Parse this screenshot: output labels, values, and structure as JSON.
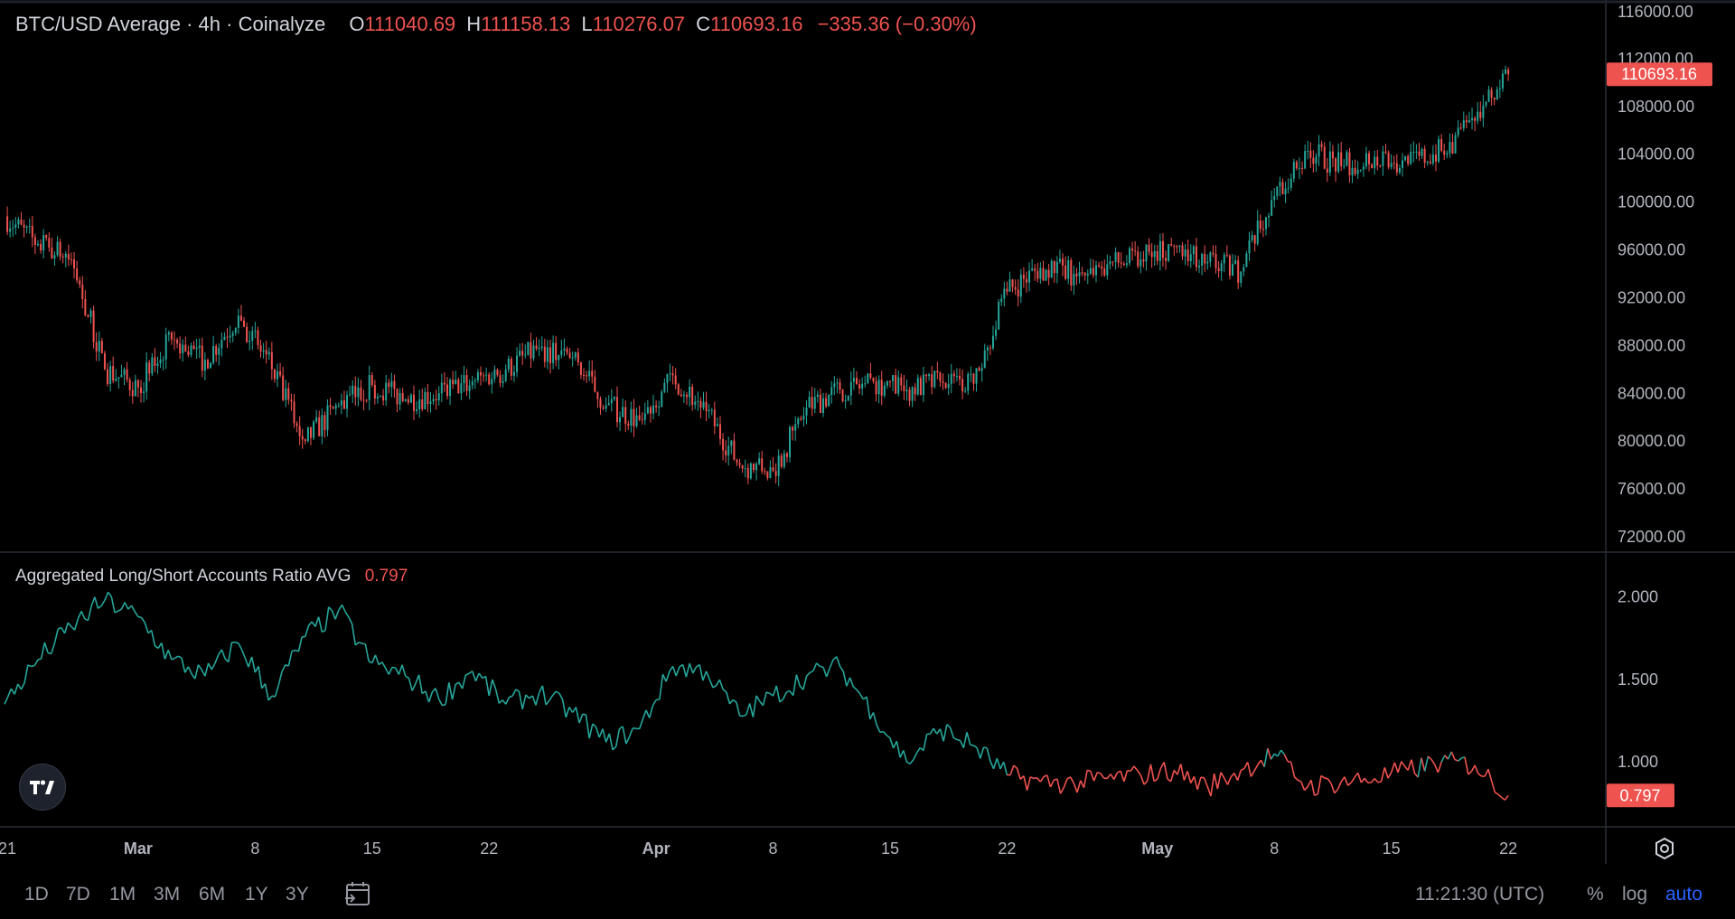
{
  "header": {
    "title": "BTC/USD Average · 4h · Coinalyze",
    "open_label": "O",
    "open": "111040.69",
    "high_label": "H",
    "high": "111158.13",
    "low_label": "L",
    "low": "110276.07",
    "close_label": "C",
    "close": "110693.16",
    "change": "−335.36 (−0.30%)"
  },
  "indicator": {
    "name": "Aggregated Long/Short Accounts Ratio AVG",
    "value": "0.797"
  },
  "timeframes": [
    "1D",
    "7D",
    "1M",
    "3M",
    "6M",
    "1Y",
    "3Y"
  ],
  "clock": "11:21:30 (UTC)",
  "options": {
    "percent": "%",
    "log": "log",
    "auto": "auto"
  },
  "colors": {
    "up": "#26a69a",
    "down": "#ef5350",
    "accent": "#2962ff",
    "grid": "#2a2e39"
  },
  "chart_data": [
    {
      "type": "candlestick",
      "title": "BTC/USD Average · 4h · Coinalyze",
      "interval": "4h",
      "ylim": [
        72000,
        116000
      ],
      "y_ticks": [
        "116000.00",
        "112000.00",
        "108000.00",
        "104000.00",
        "100000.00",
        "96000.00",
        "92000.00",
        "88000.00",
        "84000.00",
        "80000.00",
        "76000.00",
        "72000.00"
      ],
      "x_ticks": [
        "21",
        "Mar",
        "8",
        "15",
        "22",
        "Apr",
        "8",
        "15",
        "22",
        "May",
        "8",
        "15",
        "22"
      ],
      "last_value_label": "110693.16",
      "x": [
        "2025-02-21",
        "2025-02-23",
        "2025-02-25",
        "2025-02-27",
        "2025-03-01",
        "2025-03-03",
        "2025-03-05",
        "2025-03-07",
        "2025-03-09",
        "2025-03-11",
        "2025-03-13",
        "2025-03-15",
        "2025-03-17",
        "2025-03-19",
        "2025-03-21",
        "2025-03-23",
        "2025-03-25",
        "2025-03-27",
        "2025-03-29",
        "2025-03-31",
        "2025-04-02",
        "2025-04-04",
        "2025-04-06",
        "2025-04-08",
        "2025-04-10",
        "2025-04-12",
        "2025-04-14",
        "2025-04-16",
        "2025-04-18",
        "2025-04-20",
        "2025-04-22",
        "2025-04-24",
        "2025-04-26",
        "2025-04-28",
        "2025-04-30",
        "2025-05-02",
        "2025-05-04",
        "2025-05-06",
        "2025-05-08",
        "2025-05-10",
        "2025-05-12",
        "2025-05-14",
        "2025-05-16",
        "2025-05-18",
        "2025-05-20",
        "2025-05-22"
      ],
      "close": [
        98800,
        96500,
        95200,
        86000,
        84500,
        88500,
        86800,
        90500,
        86000,
        80000,
        83000,
        84700,
        83500,
        84000,
        85000,
        86000,
        87800,
        87000,
        83000,
        81800,
        85500,
        82500,
        78000,
        77500,
        82800,
        84300,
        85000,
        84300,
        85000,
        84800,
        92500,
        94500,
        94000,
        94800,
        95200,
        96300,
        95000,
        94200,
        100500,
        104300,
        103000,
        103800,
        103200,
        104300,
        106800,
        110693
      ],
      "ratio_x": [
        "2025-02-21",
        "2025-02-23",
        "2025-02-25",
        "2025-02-27",
        "2025-03-01",
        "2025-03-03",
        "2025-03-05",
        "2025-03-07",
        "2025-03-09",
        "2025-03-11",
        "2025-03-13",
        "2025-03-15",
        "2025-03-17",
        "2025-03-19",
        "2025-03-21",
        "2025-03-23",
        "2025-03-25",
        "2025-03-27",
        "2025-03-29",
        "2025-03-31",
        "2025-04-02",
        "2025-04-04",
        "2025-04-06",
        "2025-04-08",
        "2025-04-10",
        "2025-04-12",
        "2025-04-14",
        "2025-04-16",
        "2025-04-18",
        "2025-04-20",
        "2025-04-22",
        "2025-04-24",
        "2025-04-26",
        "2025-04-28",
        "2025-04-30",
        "2025-05-02",
        "2025-05-04",
        "2025-05-06",
        "2025-05-08",
        "2025-05-10",
        "2025-05-12",
        "2025-05-14",
        "2025-05-16",
        "2025-05-18",
        "2025-05-20",
        "2025-05-22"
      ]
    },
    {
      "type": "line",
      "title": "Aggregated Long/Short Accounts Ratio AVG",
      "ylim": [
        0.7,
        2.08
      ],
      "y_ticks": [
        "2.000",
        "1.500",
        "1.000"
      ],
      "last_value_label": "0.797",
      "x": [
        "2025-02-21",
        "2025-02-23",
        "2025-02-25",
        "2025-02-27",
        "2025-03-01",
        "2025-03-03",
        "2025-03-05",
        "2025-03-07",
        "2025-03-09",
        "2025-03-11",
        "2025-03-13",
        "2025-03-15",
        "2025-03-17",
        "2025-03-19",
        "2025-03-21",
        "2025-03-23",
        "2025-03-25",
        "2025-03-27",
        "2025-03-29",
        "2025-03-31",
        "2025-04-02",
        "2025-04-04",
        "2025-04-06",
        "2025-04-08",
        "2025-04-10",
        "2025-04-12",
        "2025-04-14",
        "2025-04-16",
        "2025-04-18",
        "2025-04-20",
        "2025-04-22",
        "2025-04-24",
        "2025-04-26",
        "2025-04-28",
        "2025-04-30",
        "2025-05-02",
        "2025-05-04",
        "2025-05-06",
        "2025-05-08",
        "2025-05-10",
        "2025-05-12",
        "2025-05-14",
        "2025-05-16",
        "2025-05-18",
        "2025-05-20",
        "2025-05-22"
      ],
      "values": [
        1.35,
        1.62,
        1.82,
        1.98,
        1.88,
        1.62,
        1.52,
        1.72,
        1.4,
        1.76,
        1.92,
        1.6,
        1.52,
        1.38,
        1.55,
        1.35,
        1.42,
        1.3,
        1.12,
        1.2,
        1.58,
        1.55,
        1.28,
        1.4,
        1.52,
        1.58,
        1.3,
        1.0,
        1.2,
        1.1,
        0.92,
        0.88,
        0.87,
        0.9,
        0.92,
        0.95,
        0.85,
        0.95,
        1.05,
        0.85,
        0.88,
        0.9,
        0.95,
        1.0,
        0.98,
        0.797
      ]
    }
  ]
}
